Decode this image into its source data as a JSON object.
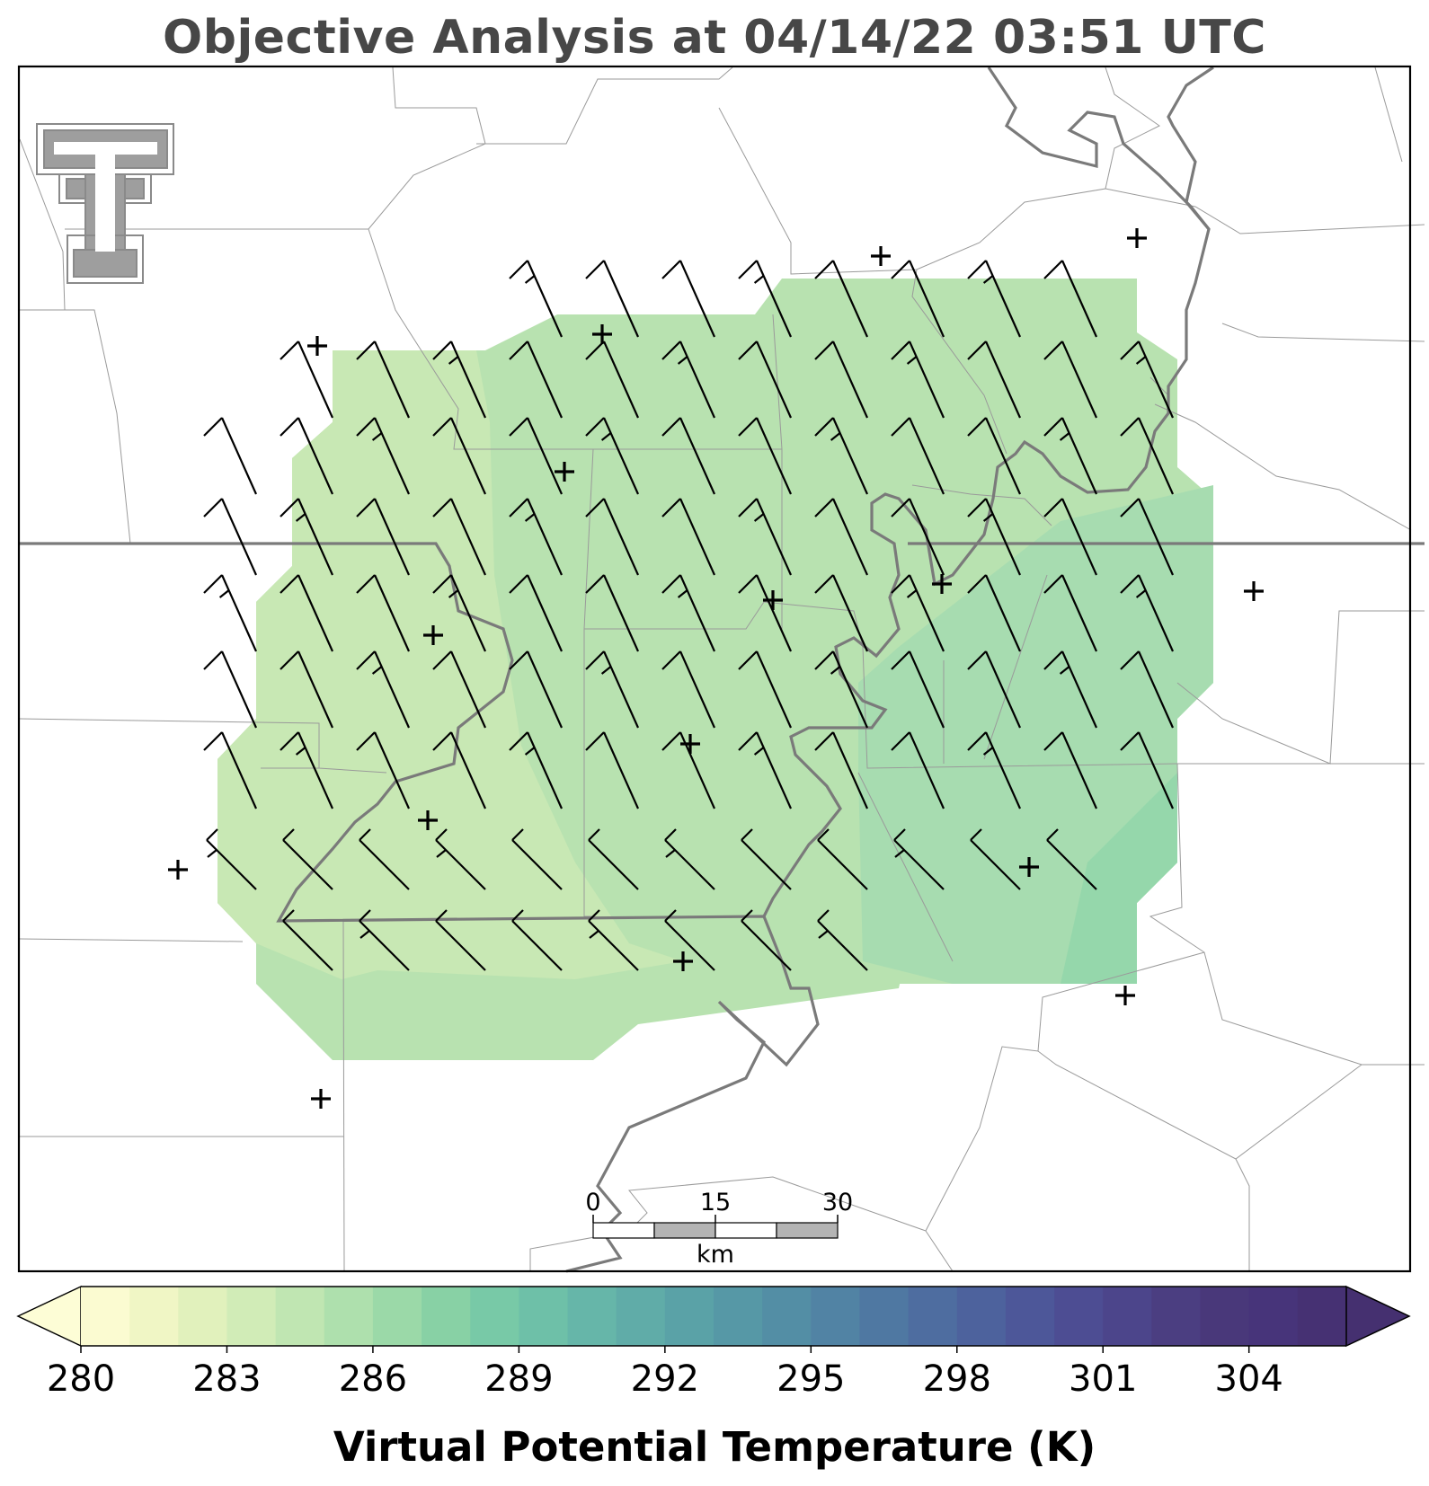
{
  "title": "Objective Analysis at 04/14/22 03:51 UTC",
  "logo": "texas-tech-double-t-logo",
  "scale_bar": {
    "labels": [
      "0",
      "15",
      "30"
    ],
    "unit": "km"
  },
  "colorbar": {
    "label": "Virtual Potential Temperature (K)",
    "min": 280,
    "max": 306,
    "step": 1,
    "tick_values": [
      280,
      283,
      286,
      289,
      292,
      295,
      298,
      301,
      304
    ],
    "tick_labels": [
      "280",
      "283",
      "286",
      "289",
      "292",
      "295",
      "298",
      "301",
      "304"
    ],
    "extend": "both",
    "colors": [
      "#fbfbd1",
      "#f0f6c5",
      "#e1f1bc",
      "#d1ecb7",
      "#c0e6b2",
      "#aee0ad",
      "#9bd9a8",
      "#88d1a5",
      "#78c9a7",
      "#6ec0a8",
      "#66b6a9",
      "#60aca8",
      "#5aa2a7",
      "#5698a6",
      "#538ea5",
      "#5183a4",
      "#4f78a2",
      "#4e6da0",
      "#4d629d",
      "#4d5799",
      "#4d4d93",
      "#4c458b",
      "#4b3e81",
      "#49387a",
      "#47347a",
      "#463173"
    ],
    "under_color": "#fdfdd6",
    "over_color": "#453070"
  },
  "field_colors": {
    "light": "#c8e8b4",
    "mid": "#b8e2b0",
    "warm": "#a7dcb0",
    "warmest": "#95d7ab"
  },
  "barb_color": "#000000",
  "station_marker": "+",
  "border_color": "#7a7a7a",
  "county_line_color": "#9a9a9a"
}
